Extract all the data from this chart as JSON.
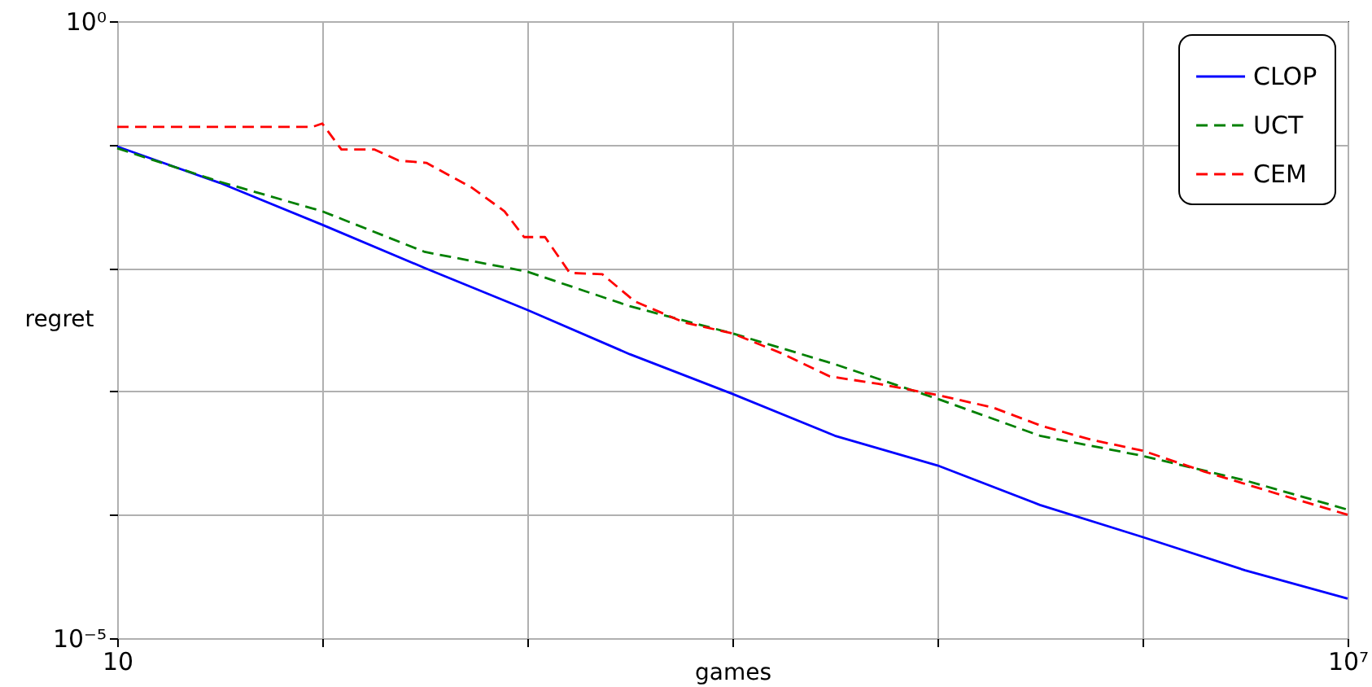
{
  "chart_data": {
    "type": "line",
    "xlabel": "games",
    "ylabel": "regret",
    "log": "xy",
    "grid": true,
    "legend": "top right",
    "marker": "none",
    "xlim": [
      10,
      10000000
    ],
    "ylim": [
      1e-05,
      1
    ],
    "xticks": [
      10,
      {
        "value": 100,
        "label": null
      },
      {
        "value": 1000,
        "label": null
      },
      {
        "value": 10000,
        "label": null
      },
      {
        "value": 100000,
        "label": null
      },
      {
        "value": 1000000,
        "label": null
      },
      {
        "value": 10000000,
        "label": "10⁷"
      }
    ],
    "yticks": [
      {
        "value": 1e-05,
        "label": "10⁻⁵"
      },
      {
        "value": 0.0001,
        "label": null
      },
      {
        "value": 0.001,
        "label": null
      },
      {
        "value": 0.01,
        "label": null
      },
      {
        "value": 0.1,
        "label": null
      },
      {
        "value": 1,
        "label": "10⁰"
      }
    ],
    "series": [
      {
        "name": "CLOP",
        "color": "#0000ff",
        "line_style": "solid",
        "x": [
          10,
          31.6,
          100,
          316,
          1000,
          3160,
          10000,
          31600,
          100000,
          316000,
          1000000,
          3160000,
          10000000
        ],
        "values": [
          0.0964,
          0.049,
          0.0224,
          0.01,
          0.00457,
          0.002,
          0.000955,
          0.000437,
          0.000251,
          0.00012,
          6.6e-05,
          3.55e-05,
          2.09e-05
        ]
      },
      {
        "name": "UCT",
        "color": "#008000",
        "line_style": "dashed",
        "x": [
          10,
          31.6,
          100,
          316,
          1000,
          3160,
          10000,
          31600,
          100000,
          316000,
          1000000,
          3160000,
          10000000
        ],
        "values": [
          0.0933,
          0.05,
          0.0288,
          0.0135,
          0.00933,
          0.0049,
          0.00295,
          0.00166,
          0.00087,
          0.000437,
          0.0003,
          0.00019,
          0.00011
        ]
      },
      {
        "name": "CEM",
        "color": "#ff0000",
        "line_style": "dashed",
        "x": [
          10,
          89.6,
          100,
          124,
          180,
          236,
          322,
          537,
          774,
          964,
          1220,
          1610,
          2320,
          3340,
          5780,
          10000,
          17300,
          29900,
          51800,
          100000,
          186000,
          322000,
          557000,
          1000000,
          2000000,
          5000000,
          10000000
        ],
        "values": [
          0.139,
          0.139,
          0.148,
          0.0912,
          0.0912,
          0.0741,
          0.0711,
          0.0447,
          0.0288,
          0.0178,
          0.0178,
          0.00912,
          0.0089,
          0.00537,
          0.00363,
          0.00295,
          0.00204,
          0.00132,
          0.00115,
          0.000933,
          0.000741,
          0.000525,
          0.000407,
          0.000331,
          0.000224,
          0.000141,
          0.0001
        ]
      }
    ]
  }
}
